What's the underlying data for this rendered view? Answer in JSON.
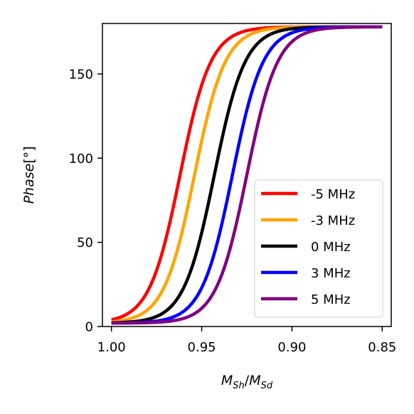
{
  "chart_data": {
    "type": "line",
    "title": "",
    "xlabel": {
      "base1": "M",
      "sub1": "Sh",
      "sep": "/",
      "base2": "M",
      "sub2": "Sd"
    },
    "ylabel": {
      "text": "Phase",
      "unit": "[°]"
    },
    "xlim": [
      1.005,
      0.845
    ],
    "ylim": [
      0,
      180
    ],
    "x_ticks": [
      1.0,
      0.95,
      0.9,
      0.85
    ],
    "x_tick_labels": [
      "1.00",
      "0.95",
      "0.90",
      "0.85"
    ],
    "y_ticks": [
      0,
      50,
      100,
      150
    ],
    "y_tick_labels": [
      "0",
      "50",
      "100",
      "150"
    ],
    "grid": false,
    "legend_position": "lower-right",
    "x_range": [
      1.0,
      0.85
    ],
    "series": [
      {
        "name": "-5 MHz",
        "color": "#ff0000",
        "center": 0.962,
        "width": 0.0085
      },
      {
        "name": "-3 MHz",
        "color": "#ffa500",
        "center": 0.954,
        "width": 0.0085
      },
      {
        "name": "0 MHz",
        "color": "#000000",
        "center": 0.943,
        "width": 0.0085
      },
      {
        "name": "3 MHz",
        "color": "#0000ff",
        "center": 0.933,
        "width": 0.0085
      },
      {
        "name": "5 MHz",
        "color": "#800080",
        "center": 0.925,
        "width": 0.0085
      }
    ],
    "phase_min": 2,
    "phase_max": 178
  }
}
